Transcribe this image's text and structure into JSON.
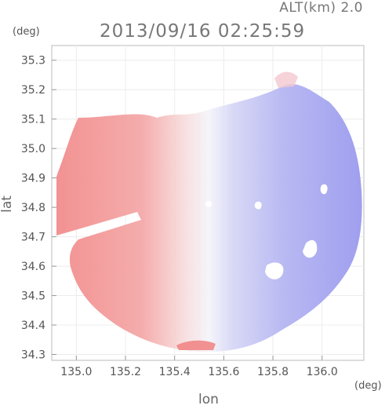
{
  "header": {
    "alt_label": "ALT(km) 2.0",
    "timestamp": "2013/09/16 02:25:59"
  },
  "chart_data": {
    "type": "heatmap",
    "title": "2013/09/16 02:25:59",
    "xlabel": "lon",
    "ylabel": "lat",
    "x_unit": "(deg)",
    "y_unit": "(deg)",
    "xlim": [
      134.9,
      136.17
    ],
    "ylim": [
      34.28,
      35.35
    ],
    "x_ticks": [
      {
        "value": 135.0,
        "label": "135.0"
      },
      {
        "value": 135.2,
        "label": "135.2"
      },
      {
        "value": 135.4,
        "label": "135.4"
      },
      {
        "value": 135.6,
        "label": "135.6"
      },
      {
        "value": 135.8,
        "label": "135.8"
      },
      {
        "value": 136.0,
        "label": "136.0"
      }
    ],
    "y_ticks": [
      {
        "value": 34.3,
        "label": "34.3"
      },
      {
        "value": 34.4,
        "label": "34.4"
      },
      {
        "value": 34.5,
        "label": "34.5"
      },
      {
        "value": 34.6,
        "label": "34.6"
      },
      {
        "value": 34.7,
        "label": "34.7"
      },
      {
        "value": 34.8,
        "label": "34.8"
      },
      {
        "value": 34.9,
        "label": "34.9"
      },
      {
        "value": 35.0,
        "label": "35.0"
      },
      {
        "value": 35.1,
        "label": "35.1"
      },
      {
        "value": 35.2,
        "label": "35.2"
      },
      {
        "value": 35.3,
        "label": "35.3"
      }
    ],
    "radar_center": {
      "lon": 135.53,
      "lat": 34.82
    },
    "colors": {
      "positive": "#f08c8c",
      "negative": "#8f8ff0",
      "neutral": "#f4f4fa"
    },
    "grid": true
  }
}
